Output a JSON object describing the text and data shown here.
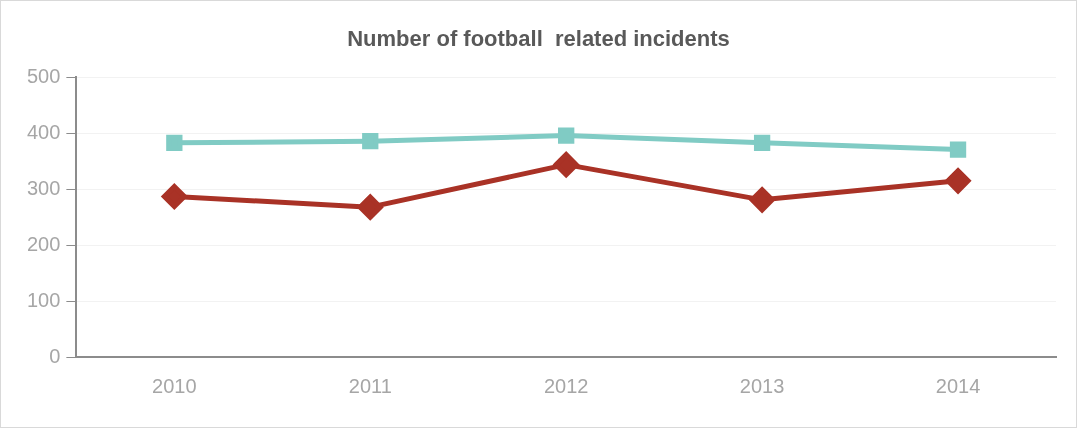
{
  "chart_data": {
    "type": "line",
    "title": "Number of football  related incidents",
    "categories": [
      "2010",
      "2011",
      "2012",
      "2013",
      "2014"
    ],
    "series": [
      {
        "color": "#80cbc4",
        "marker": "square",
        "values": [
          383,
          386,
          396,
          383,
          371
        ]
      },
      {
        "color": "#a93226",
        "marker": "diamond",
        "values": [
          287,
          268,
          344,
          281,
          315
        ]
      }
    ],
    "ylim": [
      0,
      500
    ],
    "yticks": [
      0,
      100,
      200,
      300,
      400,
      500
    ],
    "grid": "y",
    "legend": false
  }
}
